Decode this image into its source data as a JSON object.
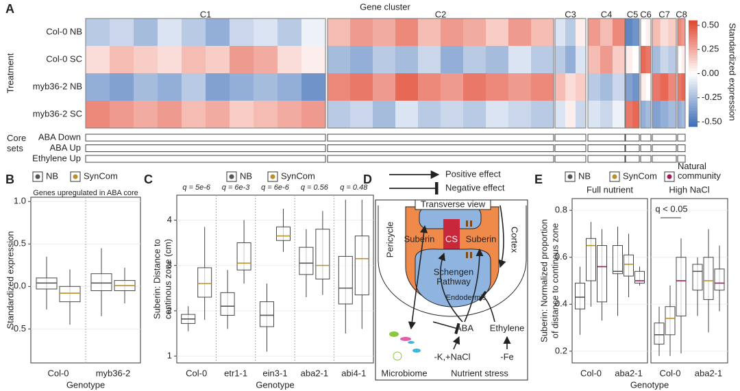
{
  "chart_data": [
    {
      "type": "heatmap",
      "panel_label": "A",
      "title": "Gene cluster",
      "ylabel": "Treatment",
      "clusters": [
        "C1",
        "C2",
        "C3",
        "C4",
        "C5",
        "C6",
        "C7",
        "C8"
      ],
      "rows": [
        "Col-0 NB",
        "Col-0 SC",
        "myb36-2 NB",
        "myb36-2 SC"
      ],
      "values": [
        [
          [
            -0.2,
            -0.15,
            -0.25,
            -0.1,
            -0.2,
            -0.3,
            -0.15,
            -0.1,
            -0.2,
            -0.05
          ],
          [
            0.2,
            0.3,
            0.25,
            0.35,
            0.2,
            0.3,
            0.25,
            0.15,
            0.3,
            0.2
          ],
          [
            -0.1,
            -0.2,
            0.05
          ],
          [
            0.3,
            0.2,
            0.35
          ],
          [
            -0.45,
            -0.4
          ],
          [
            0.0,
            0.05
          ],
          [
            0.2,
            0.1,
            0.15
          ],
          [
            0.35,
            0.3
          ]
        ],
        [
          [
            0.1,
            0.2,
            0.15,
            0.1,
            0.2,
            0.15,
            0.3,
            0.25,
            0.1,
            0.05
          ],
          [
            -0.25,
            -0.3,
            -0.2,
            -0.25,
            -0.15,
            -0.3,
            -0.2,
            -0.25,
            -0.1,
            -0.2
          ],
          [
            -0.2,
            -0.3,
            -0.1
          ],
          [
            0.2,
            0.3,
            0.15
          ],
          [
            0.05,
            0.0
          ],
          [
            0.45,
            0.4
          ],
          [
            -0.25,
            -0.15,
            -0.2
          ],
          [
            0.0,
            0.05
          ]
        ],
        [
          [
            -0.3,
            -0.35,
            -0.25,
            -0.3,
            -0.2,
            -0.35,
            -0.3,
            -0.25,
            -0.3,
            -0.4
          ],
          [
            0.35,
            0.4,
            0.3,
            0.45,
            0.35,
            0.3,
            0.4,
            0.35,
            0.3,
            0.35
          ],
          [
            0.2,
            0.1,
            0.15
          ],
          [
            -0.2,
            -0.25,
            -0.15
          ],
          [
            -0.35,
            -0.4
          ],
          [
            0.05,
            0.0
          ],
          [
            0.4,
            0.45,
            0.35
          ],
          [
            0.4,
            0.45
          ]
        ],
        [
          [
            0.35,
            0.3,
            0.25,
            0.3,
            0.2,
            0.25,
            0.15,
            0.2,
            0.25,
            0.3
          ],
          [
            -0.2,
            -0.15,
            -0.25,
            -0.1,
            -0.2,
            -0.15,
            -0.2,
            -0.1,
            -0.15,
            -0.2
          ],
          [
            -0.1,
            0.05,
            -0.15
          ],
          [
            -0.1,
            -0.15,
            -0.05
          ],
          [
            0.4,
            0.45
          ],
          [
            -0.3,
            -0.25
          ],
          [
            -0.35,
            -0.3,
            -0.25
          ],
          [
            -0.3,
            -0.25
          ]
        ]
      ],
      "colormap": [
        "#3b6cb5",
        "#ffffff",
        "#e1462f"
      ],
      "colorbar": {
        "label": "Standardized expression",
        "lim": [
          -0.55,
          0.55
        ],
        "ticks": [
          {
            "value": 0.5,
            "label": "0.50"
          },
          0.25,
          {
            "value": 0,
            "label": "0.00"
          },
          -0.25,
          {
            "value": -0.5,
            "label": "-0.50"
          }
        ]
      },
      "core_sets": {
        "label": "Core sets",
        "rows": [
          "ABA Down",
          "ABA Up",
          "Ethylene Up"
        ]
      }
    },
    {
      "type": "box",
      "panel_label": "B",
      "subtitle": "Genes upregulated in ABA core",
      "xlabel": "Genotype",
      "ylabel": "Standardized expression",
      "categories": [
        "Col-0",
        "myb36-2"
      ],
      "ylim": [
        -0.9,
        1.05
      ],
      "yticks": [
        -0.5,
        {
          "value": 0,
          "label": "0.0"
        },
        0.5,
        {
          "value": 1,
          "label": "1.0"
        }
      ],
      "series": [
        {
          "name": "NB",
          "color": "#555555",
          "values": [
            {
              "low": -0.27,
              "q1": -0.03,
              "median": 0.04,
              "q3": 0.1,
              "high": 0.35
            },
            {
              "low": -0.35,
              "q1": -0.05,
              "median": 0.04,
              "q3": 0.15,
              "high": 0.45
            }
          ]
        },
        {
          "name": "SynCom",
          "color": "#b8902e",
          "values": [
            {
              "low": -0.45,
              "q1": -0.18,
              "median": -0.08,
              "q3": 0.0,
              "high": 0.2
            },
            {
              "low": -0.2,
              "q1": -0.05,
              "median": 0.01,
              "q3": 0.07,
              "high": 0.22
            }
          ]
        }
      ]
    },
    {
      "type": "box",
      "panel_label": "C",
      "xlabel": "Genotype",
      "ylabel": [
        "Suberin: Distance to",
        "continous zone (cm)"
      ],
      "categories": [
        "Col-0",
        "etr1-1",
        "ein3-1",
        "aba2-1",
        "abi4-1"
      ],
      "annotations": [
        "q = 5e-6",
        "q = 6e-3",
        "q = 6e-6",
        "q = 0.56",
        "q = 0.48"
      ],
      "ylim": [
        0.85,
        4.55
      ],
      "yticks": [
        1,
        2,
        3,
        4
      ],
      "series": [
        {
          "name": "NB",
          "color": "#555555",
          "values": [
            {
              "low": 1.55,
              "q1": 1.72,
              "median": 1.82,
              "q3": 1.92,
              "high": 2.1
            },
            {
              "low": 1.6,
              "q1": 1.9,
              "median": 2.1,
              "q3": 2.4,
              "high": 2.9
            },
            {
              "low": 1.1,
              "q1": 1.65,
              "median": 1.9,
              "q3": 2.2,
              "high": 2.6
            },
            {
              "low": 2.3,
              "q1": 2.8,
              "median": 3.05,
              "q3": 3.4,
              "high": 3.8
            },
            {
              "low": 1.5,
              "q1": 2.15,
              "median": 2.5,
              "q3": 3.2,
              "high": 4.45
            }
          ]
        },
        {
          "name": "SynCom",
          "color": "#b8902e",
          "values": [
            {
              "low": 1.8,
              "q1": 2.3,
              "median": 2.6,
              "q3": 2.95,
              "high": 3.85
            },
            {
              "low": 2.6,
              "q1": 2.9,
              "median": 3.05,
              "q3": 3.5,
              "high": 4.0
            },
            {
              "low": 3.3,
              "q1": 3.55,
              "median": 3.65,
              "q3": 3.85,
              "high": 4.25
            },
            {
              "low": 2.35,
              "q1": 2.7,
              "median": 3.0,
              "q3": 3.8,
              "high": 4.2
            },
            {
              "low": 1.6,
              "q1": 2.35,
              "median": 3.15,
              "q3": 3.65,
              "high": 4.45
            }
          ]
        }
      ]
    },
    {
      "type": "faceted-box",
      "panel_label": "E",
      "xlabel": "Genotype",
      "ylabel": [
        "Suberin: Normalized proportion",
        "of distance to continous zone"
      ],
      "categories": [
        "Col-0",
        "aba2-1"
      ],
      "ylim": [
        0.15,
        0.85
      ],
      "yticks": [
        0.2,
        0.4,
        0.6,
        0.8
      ],
      "series": [
        {
          "name": "NB",
          "color": "#555555"
        },
        {
          "name": "SynCom",
          "color": "#b8902e"
        },
        {
          "name": "Natural community",
          "color": "#a3195b"
        }
      ],
      "facets": [
        {
          "title": "Full nutrient",
          "values": [
            [
              {
                "low": 0.27,
                "q1": 0.38,
                "median": 0.43,
                "q3": 0.49,
                "high": 0.56
              },
              {
                "low": 0.35,
                "q1": 0.53,
                "median": 0.54,
                "q3": 0.65,
                "high": 0.73
              }
            ],
            [
              {
                "low": 0.39,
                "q1": 0.5,
                "median": 0.65,
                "q3": 0.68,
                "high": 0.75
              },
              {
                "low": 0.43,
                "q1": 0.52,
                "median": 0.57,
                "q3": 0.61,
                "high": 0.7
              }
            ],
            [
              {
                "low": 0.33,
                "q1": 0.41,
                "median": 0.56,
                "q3": 0.65,
                "high": 0.72
              },
              {
                "low": 0.48,
                "q1": 0.49,
                "median": 0.5,
                "q3": 0.54,
                "high": 0.56
              }
            ]
          ]
        },
        {
          "title": "High NaCl",
          "annotation": "q < 0.05",
          "values": [
            [
              {
                "low": 0.18,
                "q1": 0.23,
                "median": 0.27,
                "q3": 0.32,
                "high": 0.39
              },
              {
                "low": 0.35,
                "q1": 0.46,
                "median": 0.54,
                "q3": 0.57,
                "high": 0.6
              }
            ],
            [
              {
                "low": 0.18,
                "q1": 0.27,
                "median": 0.34,
                "q3": 0.39,
                "high": 0.48
              },
              {
                "low": 0.28,
                "q1": 0.42,
                "median": 0.5,
                "q3": 0.6,
                "high": 0.72
              }
            ],
            [
              {
                "low": 0.19,
                "q1": 0.35,
                "median": 0.5,
                "q3": 0.6,
                "high": 0.68
              },
              {
                "low": 0.37,
                "q1": 0.46,
                "median": 0.49,
                "q3": 0.55,
                "high": 0.65
              }
            ]
          ]
        }
      ]
    }
  ],
  "diagram": {
    "panel_label": "D",
    "legend": [
      "Positive effect",
      "Negative effect"
    ],
    "title": "Transverse view",
    "labels": [
      "Pericycle",
      "Cortex",
      "Suberin",
      "CS",
      "Suberin",
      "Schengen",
      "Pathway",
      "Endodermis",
      "ABA",
      "Ethylene",
      "-K,+NaCl",
      "-Fe",
      "Microbiome",
      "Nutrient stress"
    ]
  }
}
